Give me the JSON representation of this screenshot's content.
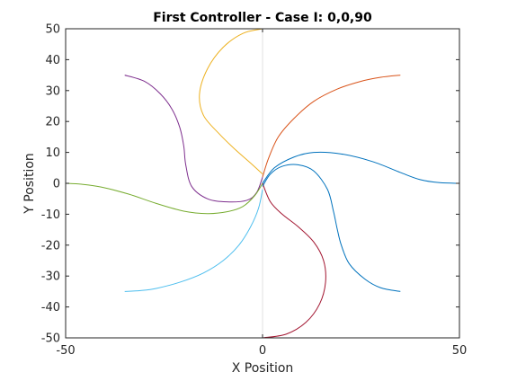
{
  "chart_data": {
    "type": "line",
    "title": "First Controller - Case I: 0,0,90",
    "xlabel": "X Position",
    "ylabel": "Y Position",
    "xlim": [
      -50,
      50
    ],
    "ylim": [
      -50,
      50
    ],
    "xticks": [
      "-50",
      "0",
      "50"
    ],
    "yticks": [
      "50",
      "40",
      "30",
      "20",
      "10",
      "0",
      "-10",
      "-20",
      "-30",
      "-40",
      "-50"
    ],
    "grid": false,
    "box": true,
    "reference_lines": [
      {
        "orientation": "vertical",
        "x": 0,
        "color": "#e0e0e0"
      }
    ],
    "series": [
      {
        "color": "#0072bd",
        "points": [
          [
            0,
            0
          ],
          [
            3,
            5
          ],
          [
            8,
            8.5
          ],
          [
            13,
            10
          ],
          [
            20,
            9.5
          ],
          [
            28,
            7
          ],
          [
            35,
            3.5
          ],
          [
            40,
            1.2
          ],
          [
            45,
            0.2
          ],
          [
            50,
            0
          ]
        ]
      },
      {
        "color": "#d95319",
        "points": [
          [
            0,
            2
          ],
          [
            1.5,
            8
          ],
          [
            4,
            15
          ],
          [
            8,
            21
          ],
          [
            13,
            26.5
          ],
          [
            19,
            30.5
          ],
          [
            25,
            33
          ],
          [
            30,
            34.3
          ],
          [
            35,
            35
          ]
        ]
      },
      {
        "color": "#edb120",
        "points": [
          [
            0,
            3
          ],
          [
            -3,
            6.5
          ],
          [
            -7,
            11
          ],
          [
            -11,
            16
          ],
          [
            -15,
            22
          ],
          [
            -16,
            29
          ],
          [
            -14,
            37
          ],
          [
            -10,
            44
          ],
          [
            -5,
            48.5
          ],
          [
            0,
            50
          ]
        ]
      },
      {
        "color": "#7e2f8e",
        "points": [
          [
            0,
            2
          ],
          [
            -1.5,
            -3
          ],
          [
            -4,
            -5.5
          ],
          [
            -9,
            -6
          ],
          [
            -14,
            -5
          ],
          [
            -18,
            -1
          ],
          [
            -19.5,
            6
          ],
          [
            -20,
            12
          ],
          [
            -21,
            18
          ],
          [
            -23,
            24
          ],
          [
            -26,
            29
          ],
          [
            -30,
            33
          ],
          [
            -35,
            35
          ]
        ]
      },
      {
        "color": "#77ac30",
        "points": [
          [
            0,
            0
          ],
          [
            -2,
            -4
          ],
          [
            -5,
            -7.5
          ],
          [
            -9,
            -9.2
          ],
          [
            -14,
            -9.8
          ],
          [
            -20,
            -9
          ],
          [
            -27,
            -6.5
          ],
          [
            -34,
            -3.5
          ],
          [
            -41,
            -1.2
          ],
          [
            -46,
            -0.3
          ],
          [
            -50,
            0
          ]
        ]
      },
      {
        "color": "#4dbeee",
        "points": [
          [
            0,
            -2
          ],
          [
            -1,
            -8
          ],
          [
            -3,
            -14
          ],
          [
            -6,
            -20
          ],
          [
            -10,
            -25
          ],
          [
            -15,
            -29
          ],
          [
            -21,
            -32
          ],
          [
            -27,
            -34
          ],
          [
            -31,
            -34.7
          ],
          [
            -35,
            -35
          ]
        ]
      },
      {
        "color": "#a2142f",
        "points": [
          [
            0,
            0
          ],
          [
            2,
            -6
          ],
          [
            5,
            -10
          ],
          [
            9,
            -14
          ],
          [
            13,
            -19
          ],
          [
            15.5,
            -25
          ],
          [
            16,
            -32
          ],
          [
            14.5,
            -39
          ],
          [
            11,
            -45
          ],
          [
            6,
            -48.8
          ],
          [
            0,
            -50
          ]
        ]
      },
      {
        "color": "#0072bd",
        "points": [
          [
            0,
            -1
          ],
          [
            2,
            3
          ],
          [
            5,
            5.5
          ],
          [
            9,
            6
          ],
          [
            13,
            4
          ],
          [
            16.5,
            -2
          ],
          [
            18,
            -9
          ],
          [
            19,
            -15
          ],
          [
            20,
            -20
          ],
          [
            22,
            -26
          ],
          [
            26,
            -31
          ],
          [
            30,
            -33.8
          ],
          [
            35,
            -35
          ]
        ]
      }
    ]
  }
}
